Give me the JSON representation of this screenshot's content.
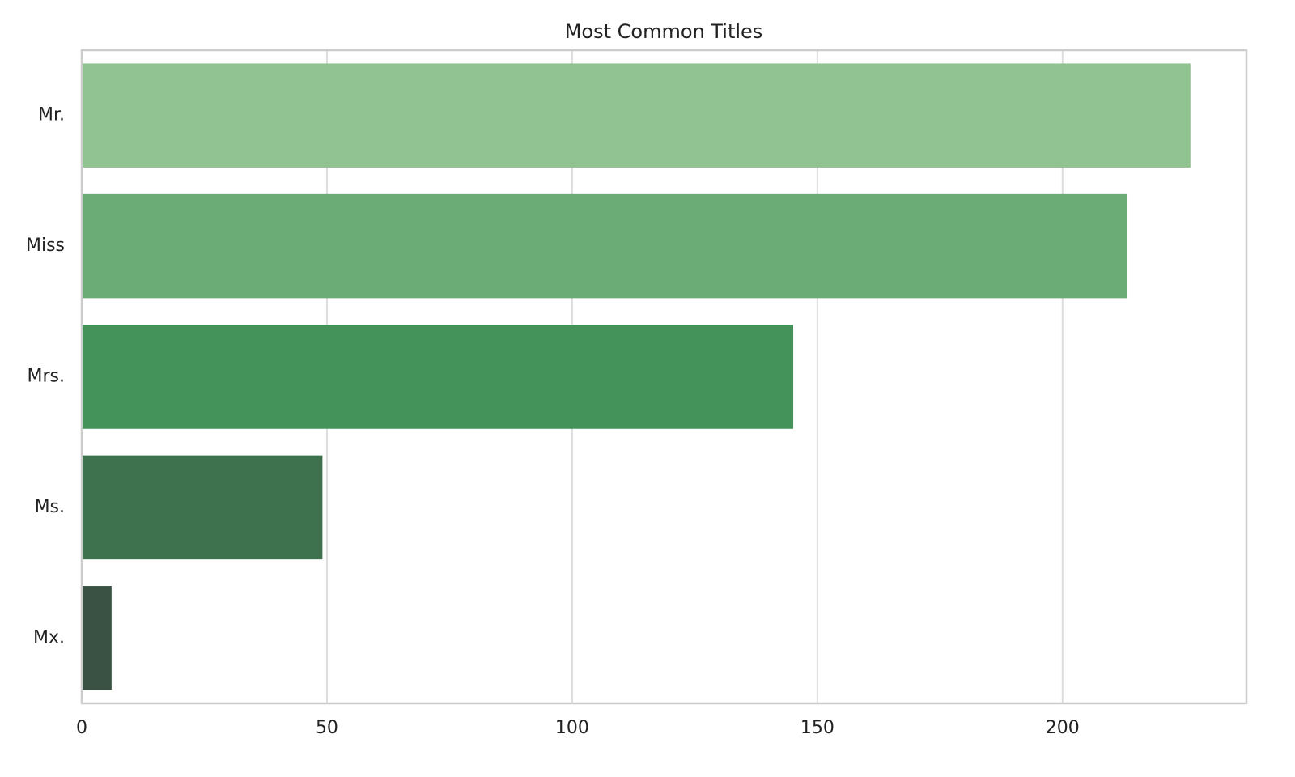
{
  "chart_data": {
    "type": "hbar",
    "title": "Most Common Titles",
    "categories": [
      "Mr.",
      "Miss",
      "Mrs.",
      "Ms.",
      "Mx."
    ],
    "values": [
      226,
      213,
      145,
      49,
      6
    ],
    "colors": [
      "#91c292",
      "#6aab76",
      "#43935a",
      "#3e714d",
      "#3a5243"
    ],
    "xlim": [
      0,
      237.5
    ],
    "xticks": [
      0,
      50,
      100,
      150,
      200
    ],
    "grid": true
  }
}
